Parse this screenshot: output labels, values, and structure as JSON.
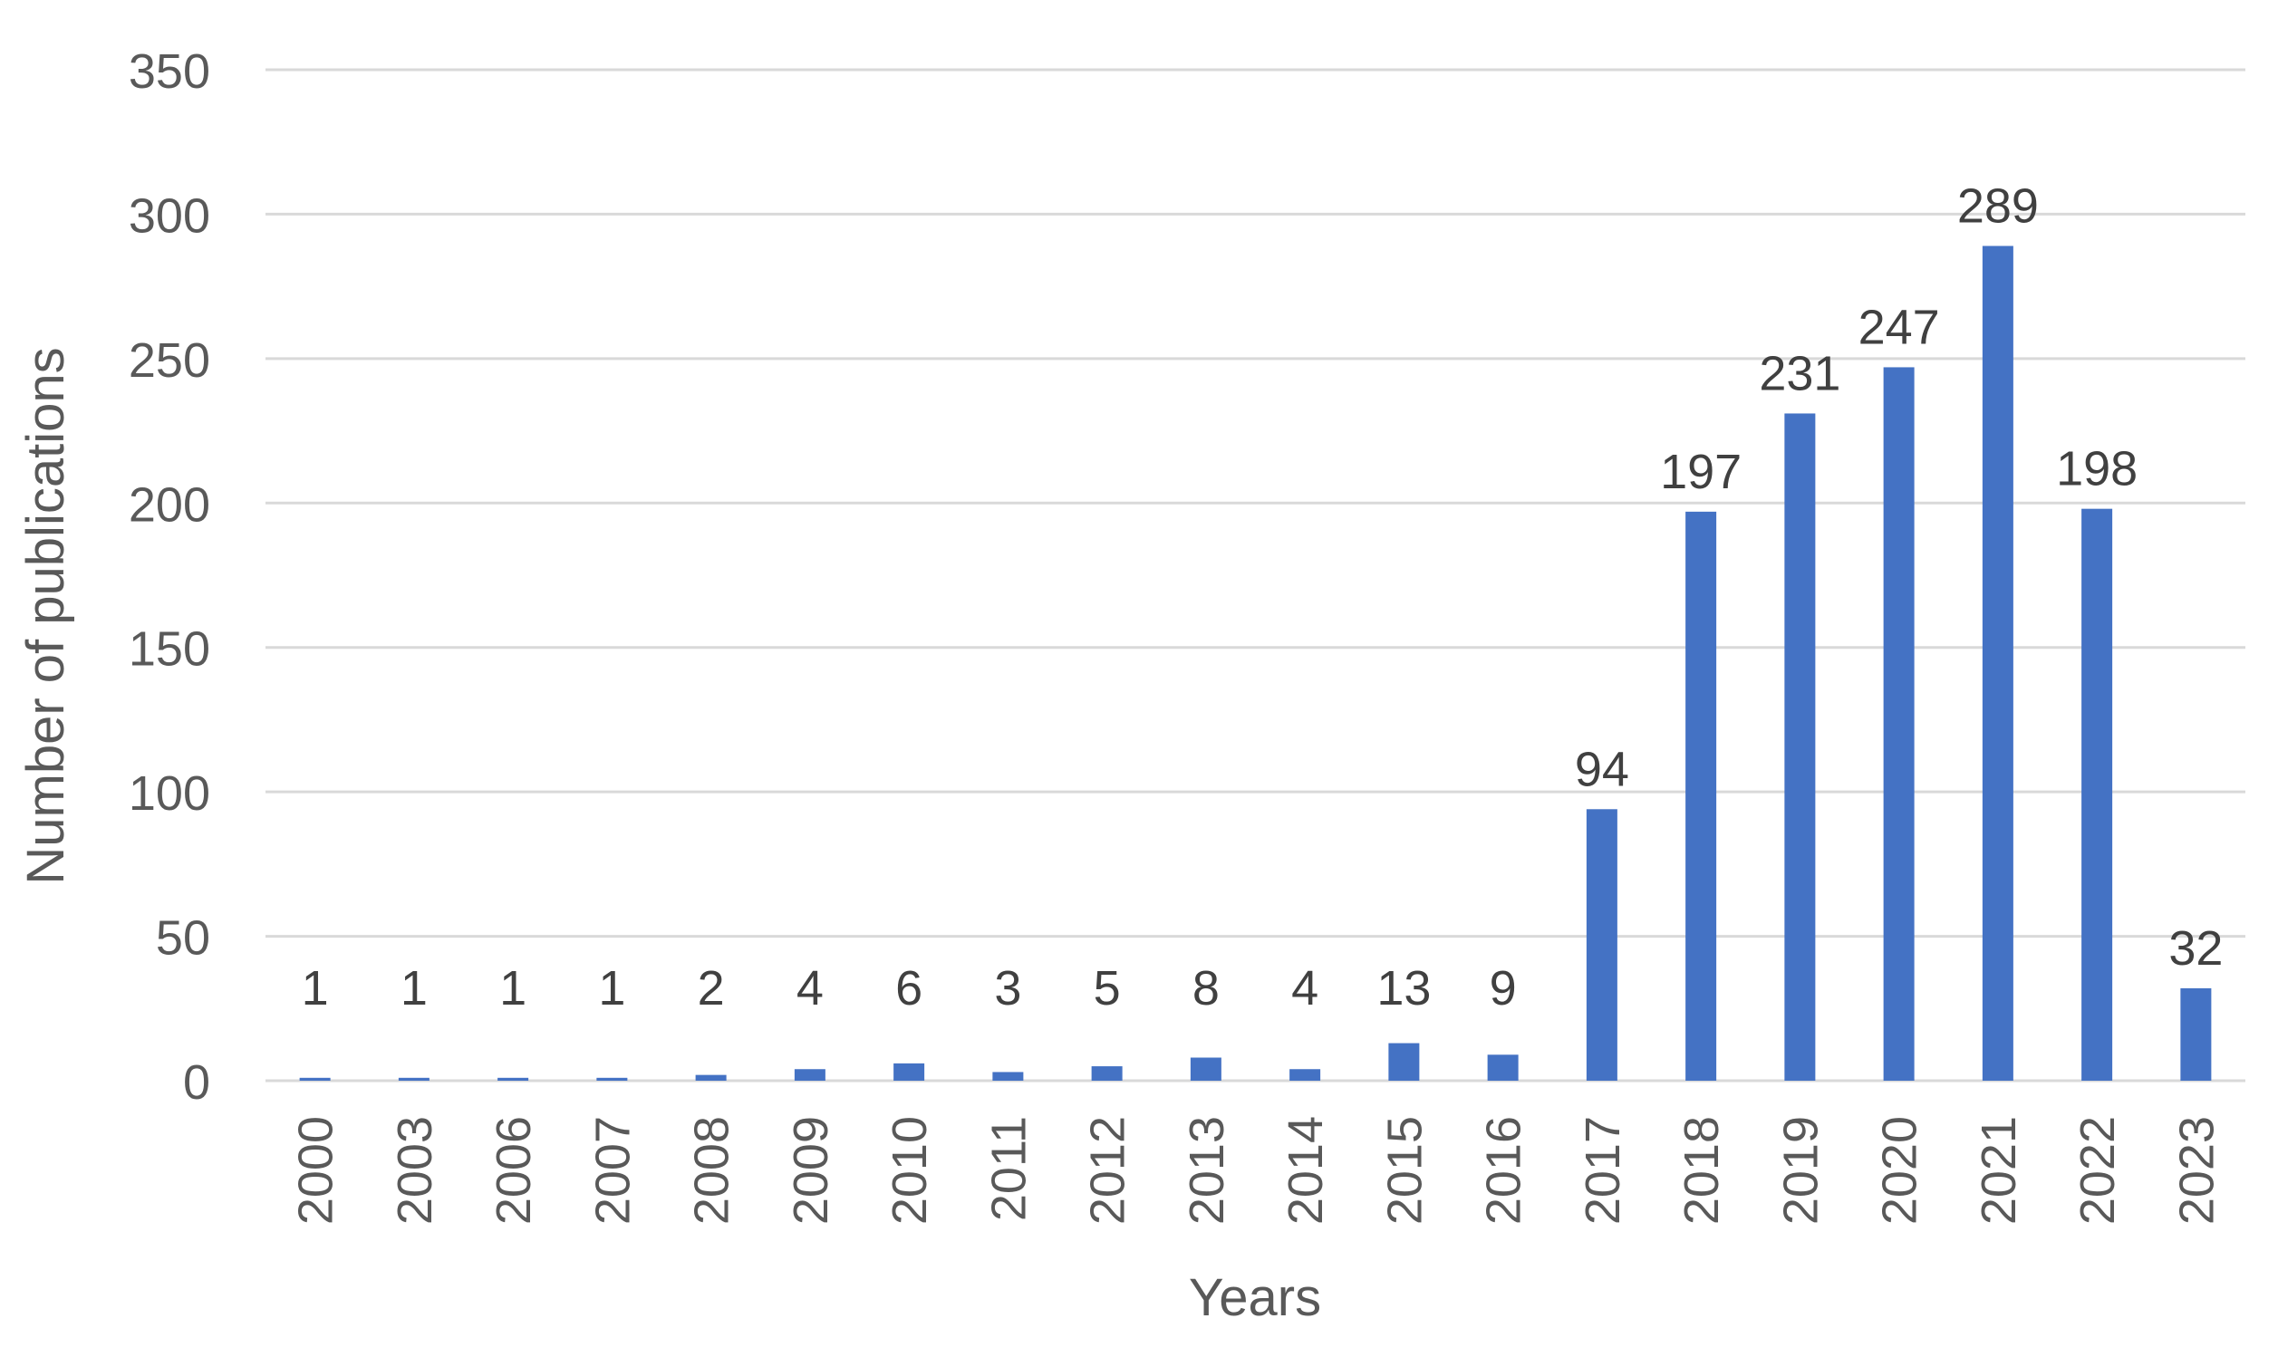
{
  "chart_data": {
    "type": "bar",
    "title": "",
    "xlabel": "Years",
    "ylabel": "Number of publications",
    "categories": [
      "2000",
      "2003",
      "2006",
      "2007",
      "2008",
      "2009",
      "2010",
      "2011",
      "2012",
      "2013",
      "2014",
      "2015",
      "2016",
      "2017",
      "2018",
      "2019",
      "2020",
      "2021",
      "2022",
      "2023"
    ],
    "values": [
      1,
      1,
      1,
      1,
      2,
      4,
      6,
      3,
      5,
      8,
      4,
      13,
      9,
      94,
      197,
      231,
      247,
      289,
      198,
      32
    ],
    "ylim": [
      0,
      350
    ],
    "yticks": [
      0,
      50,
      100,
      150,
      200,
      250,
      300,
      350
    ],
    "grid": true,
    "legend": "none",
    "data_labels": true,
    "colors": {
      "bar": "#4472C4",
      "grid": "#D9D9D9",
      "text": "#595959",
      "data_label": "#404040"
    }
  }
}
